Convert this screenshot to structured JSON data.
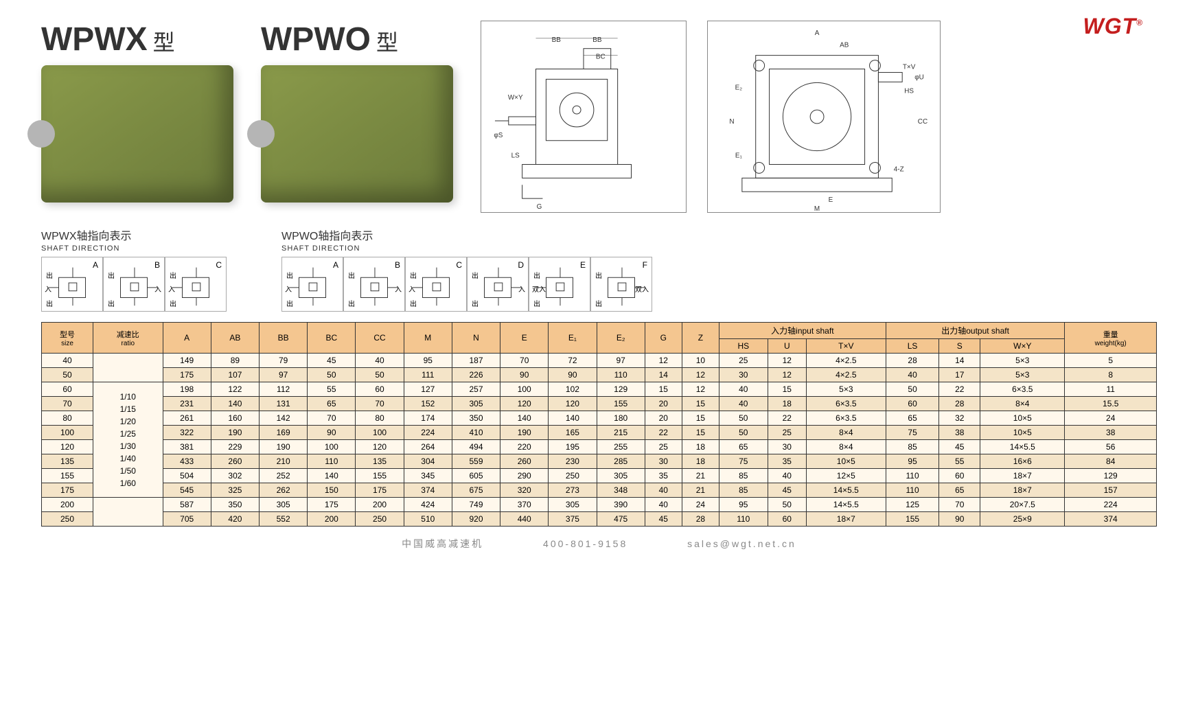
{
  "logo": "WGT",
  "products": [
    {
      "title": "WPWX",
      "suffix": "型"
    },
    {
      "title": "WPWO",
      "suffix": "型"
    }
  ],
  "diagram_labels": {
    "left": {
      "BB": "BB",
      "BC": "BC",
      "WxY": "W×Y",
      "phiS": "φS",
      "LS": "LS",
      "G": "G"
    },
    "right": {
      "A": "A",
      "AB": "AB",
      "TxV": "T×V",
      "phiU": "φU",
      "HS": "HS",
      "CC": "CC",
      "E2": "E₂",
      "N": "N",
      "E1": "E₁",
      "E": "E",
      "M": "M",
      "Z4": "4-Z"
    }
  },
  "shaft_sections": [
    {
      "title": "WPWX轴指向表示",
      "subtitle": "SHAFT DIRECTION",
      "variants": [
        "A",
        "B",
        "C"
      ]
    },
    {
      "title": "WPWO轴指向表示",
      "subtitle": "SHAFT DIRECTION",
      "variants": [
        "A",
        "B",
        "C",
        "D",
        "E",
        "F"
      ]
    }
  ],
  "shaft_cn_labels": {
    "out": "出",
    "in": "入",
    "double": "双入"
  },
  "table": {
    "header_colors": {
      "bg": "#f4c690",
      "row_even": "#f4e4c8",
      "row_odd": "#fff8ec",
      "border": "#333333"
    },
    "headers": {
      "size": {
        "cn": "型号",
        "en": "size"
      },
      "ratio": {
        "cn": "减速比",
        "en": "ratio"
      },
      "A": "A",
      "AB": "AB",
      "BB": "BB",
      "BC": "BC",
      "CC": "CC",
      "M": "M",
      "N": "N",
      "E": "E",
      "E1": "E₁",
      "E2": "E₂",
      "G": "G",
      "Z": "Z",
      "input_shaft": {
        "cn": "入力轴",
        "en": "input shaft"
      },
      "output_shaft": {
        "cn": "出力轴",
        "en": "output shaft"
      },
      "HS": "HS",
      "U": "U",
      "TxV": "T×V",
      "LS": "LS",
      "S": "S",
      "WxY": "W×Y",
      "weight": {
        "cn": "重量",
        "en": "weight(kg)"
      }
    },
    "ratio_values": [
      "1/10",
      "1/15",
      "1/20",
      "1/25",
      "1/30",
      "1/40",
      "1/50",
      "1/60"
    ],
    "rows": [
      {
        "size": "40",
        "A": "149",
        "AB": "89",
        "BB": "79",
        "BC": "45",
        "CC": "40",
        "M": "95",
        "N": "187",
        "E": "70",
        "E1": "72",
        "E2": "97",
        "G": "12",
        "Z": "10",
        "HS": "25",
        "U": "12",
        "TxV": "4×2.5",
        "LS": "28",
        "S": "14",
        "WxY": "5×3",
        "wt": "5"
      },
      {
        "size": "50",
        "A": "175",
        "AB": "107",
        "BB": "97",
        "BC": "50",
        "CC": "50",
        "M": "111",
        "N": "226",
        "E": "90",
        "E1": "90",
        "E2": "110",
        "G": "14",
        "Z": "12",
        "HS": "30",
        "U": "12",
        "TxV": "4×2.5",
        "LS": "40",
        "S": "17",
        "WxY": "5×3",
        "wt": "8"
      },
      {
        "size": "60",
        "A": "198",
        "AB": "122",
        "BB": "112",
        "BC": "55",
        "CC": "60",
        "M": "127",
        "N": "257",
        "E": "100",
        "E1": "102",
        "E2": "129",
        "G": "15",
        "Z": "12",
        "HS": "40",
        "U": "15",
        "TxV": "5×3",
        "LS": "50",
        "S": "22",
        "WxY": "6×3.5",
        "wt": "11"
      },
      {
        "size": "70",
        "A": "231",
        "AB": "140",
        "BB": "131",
        "BC": "65",
        "CC": "70",
        "M": "152",
        "N": "305",
        "E": "120",
        "E1": "120",
        "E2": "155",
        "G": "20",
        "Z": "15",
        "HS": "40",
        "U": "18",
        "TxV": "6×3.5",
        "LS": "60",
        "S": "28",
        "WxY": "8×4",
        "wt": "15.5"
      },
      {
        "size": "80",
        "A": "261",
        "AB": "160",
        "BB": "142",
        "BC": "70",
        "CC": "80",
        "M": "174",
        "N": "350",
        "E": "140",
        "E1": "140",
        "E2": "180",
        "G": "20",
        "Z": "15",
        "HS": "50",
        "U": "22",
        "TxV": "6×3.5",
        "LS": "65",
        "S": "32",
        "WxY": "10×5",
        "wt": "24"
      },
      {
        "size": "100",
        "A": "322",
        "AB": "190",
        "BB": "169",
        "BC": "90",
        "CC": "100",
        "M": "224",
        "N": "410",
        "E": "190",
        "E1": "165",
        "E2": "215",
        "G": "22",
        "Z": "15",
        "HS": "50",
        "U": "25",
        "TxV": "8×4",
        "LS": "75",
        "S": "38",
        "WxY": "10×5",
        "wt": "38"
      },
      {
        "size": "120",
        "A": "381",
        "AB": "229",
        "BB": "190",
        "BC": "100",
        "CC": "120",
        "M": "264",
        "N": "494",
        "E": "220",
        "E1": "195",
        "E2": "255",
        "G": "25",
        "Z": "18",
        "HS": "65",
        "U": "30",
        "TxV": "8×4",
        "LS": "85",
        "S": "45",
        "WxY": "14×5.5",
        "wt": "56"
      },
      {
        "size": "135",
        "A": "433",
        "AB": "260",
        "BB": "210",
        "BC": "110",
        "CC": "135",
        "M": "304",
        "N": "559",
        "E": "260",
        "E1": "230",
        "E2": "285",
        "G": "30",
        "Z": "18",
        "HS": "75",
        "U": "35",
        "TxV": "10×5",
        "LS": "95",
        "S": "55",
        "WxY": "16×6",
        "wt": "84"
      },
      {
        "size": "155",
        "A": "504",
        "AB": "302",
        "BB": "252",
        "BC": "140",
        "CC": "155",
        "M": "345",
        "N": "605",
        "E": "290",
        "E1": "250",
        "E2": "305",
        "G": "35",
        "Z": "21",
        "HS": "85",
        "U": "40",
        "TxV": "12×5",
        "LS": "110",
        "S": "60",
        "WxY": "18×7",
        "wt": "129"
      },
      {
        "size": "175",
        "A": "545",
        "AB": "325",
        "BB": "262",
        "BC": "150",
        "CC": "175",
        "M": "374",
        "N": "675",
        "E": "320",
        "E1": "273",
        "E2": "348",
        "G": "40",
        "Z": "21",
        "HS": "85",
        "U": "45",
        "TxV": "14×5.5",
        "LS": "110",
        "S": "65",
        "WxY": "18×7",
        "wt": "157"
      },
      {
        "size": "200",
        "A": "587",
        "AB": "350",
        "BB": "305",
        "BC": "175",
        "CC": "200",
        "M": "424",
        "N": "749",
        "E": "370",
        "E1": "305",
        "E2": "390",
        "G": "40",
        "Z": "24",
        "HS": "95",
        "U": "50",
        "TxV": "14×5.5",
        "LS": "125",
        "S": "70",
        "WxY": "20×7.5",
        "wt": "224"
      },
      {
        "size": "250",
        "A": "705",
        "AB": "420",
        "BB": "552",
        "BC": "200",
        "CC": "250",
        "M": "510",
        "N": "920",
        "E": "440",
        "E1": "375",
        "E2": "475",
        "G": "45",
        "Z": "28",
        "HS": "110",
        "U": "60",
        "TxV": "18×7",
        "LS": "155",
        "S": "90",
        "WxY": "25×9",
        "wt": "374"
      }
    ]
  },
  "footer": {
    "company": "中国威高减速机",
    "phone": "400-801-9158",
    "email": "sales@wgt.net.cn"
  }
}
